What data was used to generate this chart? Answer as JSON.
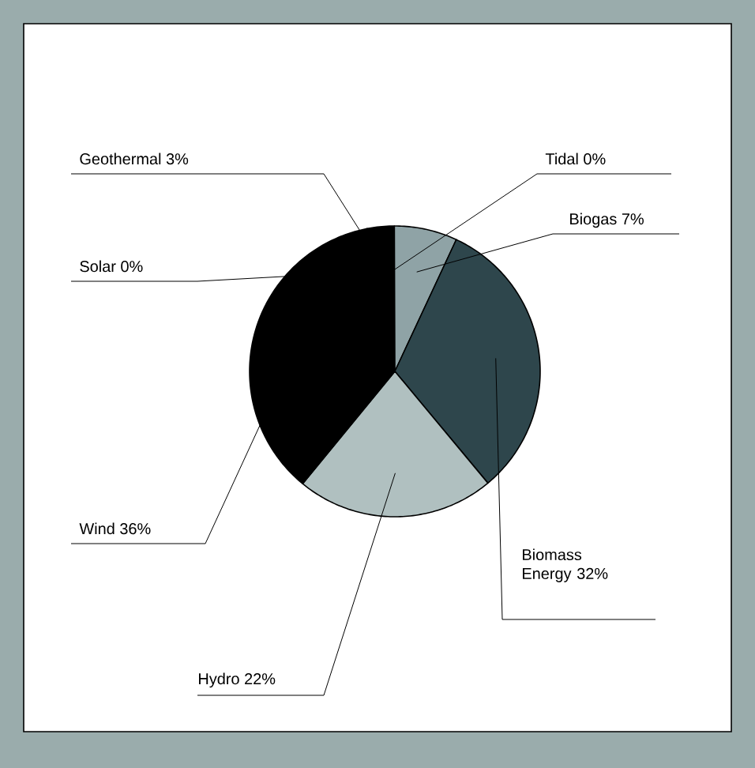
{
  "chart_data": {
    "type": "pie",
    "categories": [
      "Geothermal",
      "Tidal",
      "Biogas",
      "Biomass Energy",
      "Hydro",
      "Wind",
      "Solar"
    ],
    "values": [
      3,
      0,
      7,
      32,
      22,
      36,
      0
    ],
    "value_labels": [
      "3%",
      "0%",
      "7%",
      "32%",
      "22%",
      "36%",
      "0%"
    ],
    "colors": [
      "#000000",
      "#8fa3a6",
      "#8fa3a6",
      "#2e464c",
      "#b0c0c0",
      "#000000",
      "#000000"
    ]
  }
}
